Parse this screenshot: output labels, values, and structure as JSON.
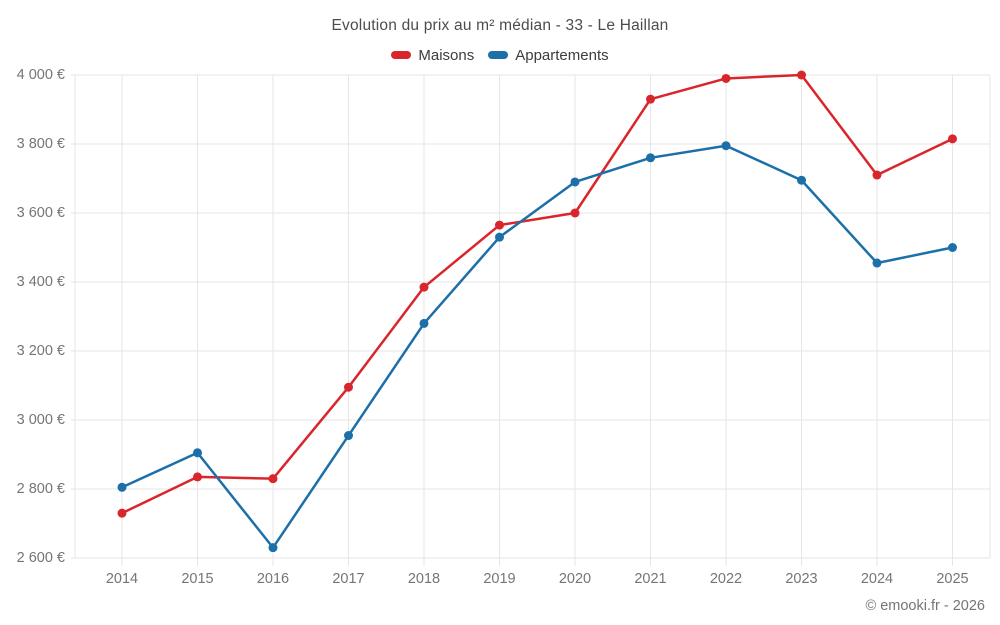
{
  "page": {
    "background": "#ffffff"
  },
  "chart_data": {
    "type": "line",
    "title": "Evolution du prix au m² médian - 33 - Le Haillan",
    "categories": [
      "2014",
      "2015",
      "2016",
      "2017",
      "2018",
      "2019",
      "2020",
      "2021",
      "2022",
      "2023",
      "2024",
      "2025"
    ],
    "series": [
      {
        "name": "Maisons",
        "color": "#d9262c",
        "values": [
          2730,
          2835,
          2830,
          3095,
          3385,
          3565,
          3600,
          3930,
          3990,
          4000,
          3710,
          3815
        ]
      },
      {
        "name": "Appartements",
        "color": "#1c6fa8",
        "values": [
          2805,
          2905,
          2630,
          2955,
          3280,
          3530,
          3690,
          3760,
          3795,
          3695,
          3455,
          3500
        ]
      }
    ],
    "xlabel": "",
    "ylabel": "",
    "ylim": [
      2600,
      4000
    ],
    "yticks": {
      "values": [
        2600,
        2800,
        3000,
        3200,
        3400,
        3600,
        3800,
        4000
      ],
      "labels": [
        "2 600 €",
        "2 800 €",
        "3 000 €",
        "3 200 €",
        "3 400 €",
        "3 600 €",
        "3 800 €",
        "4 000 €"
      ]
    },
    "grid": true,
    "legend_position": "top",
    "gridline_color": "#e6e6e6",
    "axis_text_color": "#757575"
  },
  "footer": {
    "copyright": "© emooki.fr - 2026"
  }
}
